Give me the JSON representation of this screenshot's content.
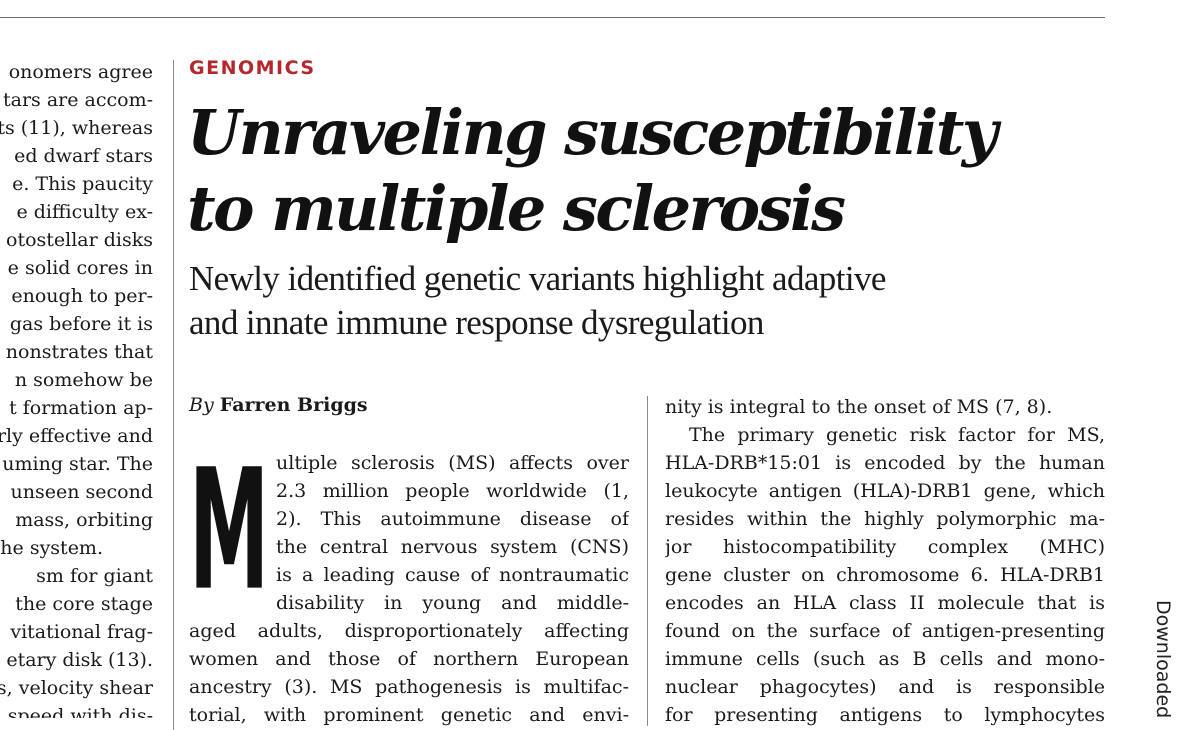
{
  "section_label": "GENOMICS",
  "title_lines": [
    "Unraveling susceptibility",
    "to multiple sclerosis"
  ],
  "subtitle_lines": [
    "Newly identified genetic variants highlight adaptive",
    "and innate immune response dysregulation"
  ],
  "byline": {
    "by": "By",
    "author": "Farren Briggs"
  },
  "drop_cap": "M",
  "left_column_lines": [
    "onomers agree",
    "tars are accom-",
    "ts (11), whereas",
    "ed dwarf stars",
    "e. This paucity",
    "e difficulty ex-",
    "otostellar disks",
    "e solid cores in",
    "enough to per-",
    "gas before it is",
    "nonstrates that",
    "n somehow be",
    "t formation ap-",
    "rly effective and",
    "uming star. The",
    "unseen second",
    "mass, orbiting",
    "he system.",
    "sm for giant",
    "the core stage",
    "vitational frag-",
    "etary disk (13).",
    "s, velocity shear",
    "speed with dis-"
  ],
  "middle_column_lines": [
    "ultiple sclerosis (MS) affects over",
    "2.3 million people worldwide (1,",
    "2). This autoimmune disease of",
    "the central nervous system (CNS)",
    "is a leading cause of nontraumatic",
    "disability in young and middle-",
    "aged adults, disproportionately affecting",
    "women and those of northern European",
    "ancestry (3). MS pathogenesis is multifac-",
    "torial, with prominent genetic and envi-"
  ],
  "right_column_lines": [
    "nity is integral to the onset of MS (7, 8).",
    "The primary genetic risk factor for MS,",
    "HLA-DRB*15:01 is encoded by the human",
    "leukocyte antigen (HLA)-DRB1 gene, which",
    "resides within the highly polymorphic ma-",
    "jor histocompatibility complex (MHC)",
    "gene cluster on chromosome 6. HLA-DRB1",
    "encodes an HLA class II molecule that is",
    "found on the surface of antigen-presenting",
    "immune cells (such as B cells and mono-",
    "nuclear phagocytes) and is responsible",
    "for presenting antigens to lymphocytes"
  ],
  "side_label": "Downloaded"
}
